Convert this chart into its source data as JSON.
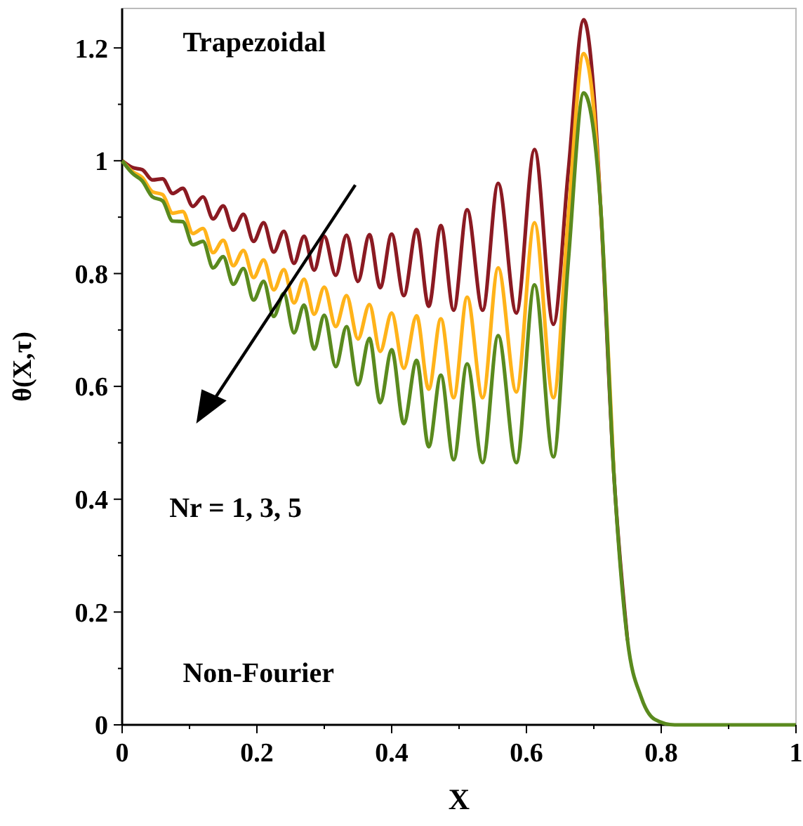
{
  "chart_data": {
    "type": "line",
    "xlabel": "X",
    "ylabel": "θ(X,τ)",
    "annotations": [
      "Trapezoidal",
      "Nr = 1, 3, 5",
      "Non-Fourier"
    ],
    "x": [
      0,
      0.015,
      0.03,
      0.045,
      0.06,
      0.075,
      0.09,
      0.105,
      0.12,
      0.135,
      0.15,
      0.165,
      0.18,
      0.195,
      0.21,
      0.225,
      0.24,
      0.255,
      0.27,
      0.285,
      0.3,
      0.317,
      0.333,
      0.35,
      0.367,
      0.383,
      0.4,
      0.418,
      0.437,
      0.455,
      0.473,
      0.492,
      0.512,
      0.535,
      0.558,
      0.585,
      0.612,
      0.64,
      0.662,
      0.685,
      0.7,
      0.71,
      0.73,
      0.75,
      0.77,
      0.79,
      0.82,
      0.9,
      1
    ],
    "series": [
      {
        "color": "#8b1a22",
        "values": [
          1,
          0.988,
          0.984,
          0.966,
          0.968,
          0.942,
          0.951,
          0.919,
          0.936,
          0.897,
          0.92,
          0.877,
          0.905,
          0.857,
          0.89,
          0.838,
          0.875,
          0.818,
          0.866,
          0.806,
          0.866,
          0.797,
          0.868,
          0.786,
          0.869,
          0.775,
          0.87,
          0.761,
          0.878,
          0.742,
          0.885,
          0.735,
          0.913,
          0.735,
          0.96,
          0.73,
          1.02,
          0.71,
          0.98,
          1.25,
          1.12,
          0.92,
          0.44,
          0.15,
          null,
          null,
          null,
          null,
          null
        ]
      },
      {
        "color": "#ffb31a",
        "values": [
          1,
          0.981,
          0.97,
          0.945,
          0.94,
          0.907,
          0.91,
          0.871,
          0.88,
          0.837,
          0.859,
          0.814,
          0.841,
          0.793,
          0.824,
          0.771,
          0.807,
          0.748,
          0.79,
          0.728,
          0.776,
          0.706,
          0.761,
          0.684,
          0.745,
          0.662,
          0.73,
          0.632,
          0.725,
          0.595,
          0.72,
          0.58,
          0.758,
          0.58,
          0.81,
          0.59,
          0.89,
          0.58,
          0.9,
          1.19,
          1.09,
          0.92,
          0.44,
          null,
          null,
          null,
          null,
          null,
          null
        ]
      },
      {
        "color": "#5a8a1e",
        "values": [
          1,
          0.978,
          0.964,
          0.936,
          0.929,
          0.893,
          0.892,
          0.851,
          0.857,
          0.81,
          0.83,
          0.781,
          0.809,
          0.753,
          0.786,
          0.724,
          0.765,
          0.695,
          0.744,
          0.666,
          0.726,
          0.635,
          0.706,
          0.603,
          0.685,
          0.571,
          0.665,
          0.534,
          0.646,
          0.493,
          0.62,
          0.47,
          0.64,
          0.465,
          0.69,
          0.465,
          0.78,
          0.475,
          0.82,
          1.12,
          1.05,
          0.92,
          0.44,
          0.15,
          0.05,
          0.01,
          0,
          0,
          0
        ]
      }
    ],
    "xlim": [
      0,
      1
    ],
    "ylim": [
      0,
      1.27
    ],
    "xticks": [
      0,
      {
        "value": 0.1,
        "label": null
      },
      0.2,
      {
        "value": 0.3,
        "label": null
      },
      0.4,
      {
        "value": 0.5,
        "label": null
      },
      0.6,
      {
        "value": 0.7,
        "label": null
      },
      0.8,
      {
        "value": 0.9,
        "label": null
      },
      1
    ],
    "yticks": [
      0,
      {
        "value": 0.1,
        "label": null
      },
      0.2,
      {
        "value": 0.3,
        "label": null
      },
      0.4,
      {
        "value": 0.5,
        "label": null
      },
      0.6,
      {
        "value": 0.7,
        "label": null
      },
      0.8,
      {
        "value": 0.9,
        "label": null
      },
      1,
      {
        "value": 1.1,
        "label": null
      },
      1.2
    ],
    "grid": false,
    "marker": "none",
    "line_style": "solid"
  }
}
